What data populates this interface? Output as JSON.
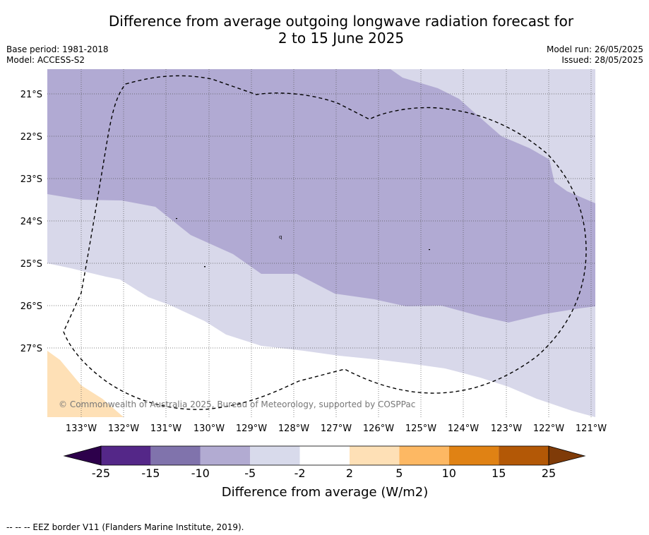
{
  "header": {
    "title_line1": "Difference from average outgoing longwave radiation forecast for",
    "title_line2": "2 to 15 June 2025",
    "base_period": "Base period: 1981-2018",
    "model": "Model: ACCESS-S2",
    "model_run": "Model run: 26/05/2025",
    "issued": "Issued: 28/05/2025"
  },
  "map": {
    "lat_labels": [
      "21°S",
      "22°S",
      "23°S",
      "24°S",
      "25°S",
      "26°S",
      "27°S"
    ],
    "lon_labels": [
      "133°W",
      "132°W",
      "131°W",
      "130°W",
      "129°W",
      "128°W",
      "127°W",
      "126°W",
      "125°W",
      "124°W",
      "123°W",
      "122°W",
      "121°W"
    ],
    "copyright": "© Commonwealth of Australia 2025, Bureau of Meteorology, supported by COSPPac",
    "colors": {
      "neg10_to_neg5": "#b1aad3",
      "neg5_to_neg2": "#d8d8ea",
      "pos2_to_pos5": "#fee0b6"
    }
  },
  "colorbar": {
    "title": "Difference from average (W/m2)",
    "ticks": [
      "-25",
      "-15",
      "-10",
      "-5",
      "-2",
      "2",
      "5",
      "10",
      "15",
      "25"
    ],
    "colors": [
      "#542788",
      "#8073ac",
      "#b2abd2",
      "#d8daeb",
      "#ffffff",
      "#fee0b6",
      "#fdb863",
      "#e08214",
      "#b35806"
    ],
    "under_color": "#2d004b",
    "over_color": "#7f3b08"
  },
  "footnote": "--  --  -- EEZ border V11 (Flanders Marine Institute, 2019)."
}
